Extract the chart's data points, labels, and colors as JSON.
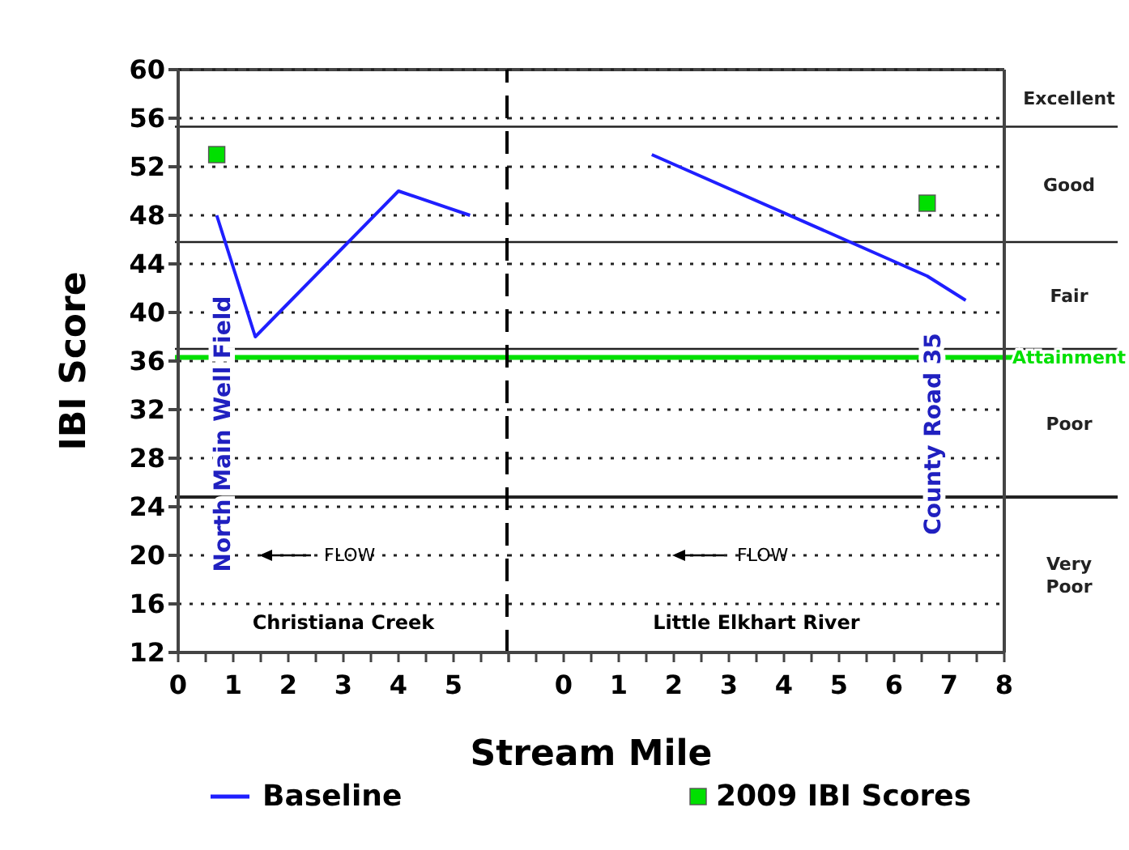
{
  "chart_data": [
    {
      "type": "line",
      "ylabel": "IBI Score",
      "xlabel": "Stream Mile",
      "xlim": [
        0,
        6
      ],
      "ylim": [
        12,
        60
      ],
      "xticks": [
        0,
        {
          "value": 0.5,
          "label": null
        },
        1,
        {
          "value": 1.5,
          "label": null
        },
        2,
        {
          "value": 2.5,
          "label": null
        },
        3,
        {
          "value": 3.5,
          "label": null
        },
        4,
        {
          "value": 4.5,
          "label": null
        },
        5,
        {
          "value": 5.5,
          "label": null
        },
        {
          "value": 6,
          "label": null
        }
      ],
      "yticks": [
        12,
        16,
        20,
        24,
        28,
        32,
        36,
        40,
        44,
        48,
        52,
        56,
        60
      ],
      "grid": "y",
      "legend": "bottom",
      "series": [
        {
          "name": "Baseline",
          "color": "#1f1fff",
          "x": [
            0.7,
            1.4,
            4,
            5.3
          ],
          "values": [
            48,
            38,
            50,
            48
          ],
          "marker": "none"
        },
        {
          "name": "2009 IBI Scores",
          "type": "scatter",
          "color": "#00e000",
          "x": [
            0.7
          ],
          "values": [
            53
          ],
          "marker": "square"
        }
      ],
      "ref_lines": [
        {
          "axis": "y",
          "value": 55.3,
          "color": "#222222"
        },
        {
          "axis": "y",
          "value": 45.8,
          "color": "#222222"
        },
        {
          "axis": "y",
          "value": 37,
          "color": "#222222"
        },
        {
          "axis": "y",
          "value": 36.3,
          "color": "#00e000"
        },
        {
          "axis": "y",
          "value": 24.8,
          "color": "#222222"
        },
        {
          "axis": "x",
          "value": 6,
          "color": "#000000",
          "line_style": "dashed"
        }
      ],
      "annotations": [
        "North Main Well Field",
        "FLOW",
        "Christiana Creek"
      ]
    },
    {
      "type": "line",
      "tick_labels": "x",
      "xlim": [
        -1,
        8
      ],
      "ylim": [
        12,
        60
      ],
      "xticks": [
        {
          "value": -1,
          "label": null
        },
        {
          "value": -0.5,
          "label": null
        },
        0,
        {
          "value": 0.5,
          "label": null
        },
        1,
        {
          "value": 1.5,
          "label": null
        },
        2,
        {
          "value": 2.5,
          "label": null
        },
        3,
        {
          "value": 3.5,
          "label": null
        },
        4,
        {
          "value": 4.5,
          "label": null
        },
        5,
        {
          "value": 5.5,
          "label": null
        },
        6,
        {
          "value": 6.5,
          "label": null
        },
        7,
        {
          "value": 7.5,
          "label": null
        },
        8
      ],
      "yticks": [
        12,
        16,
        20,
        24,
        28,
        32,
        36,
        40,
        44,
        48,
        52,
        56,
        60
      ],
      "grid": "y",
      "series": [
        {
          "color": "#1f1fff",
          "x": [
            1.6,
            6.6,
            7.3
          ],
          "values": [
            53,
            43,
            41
          ],
          "marker": "none"
        },
        {
          "type": "scatter",
          "color": "#00e000",
          "x": [
            6.6
          ],
          "values": [
            49
          ],
          "marker": "square"
        }
      ],
      "ref_lines": [
        {
          "axis": "y",
          "value": 55.3,
          "color": "#222222"
        },
        {
          "axis": "y",
          "value": 45.8,
          "color": "#222222"
        },
        {
          "axis": "y",
          "value": 37,
          "color": "#222222"
        },
        {
          "axis": "y",
          "value": 36.3,
          "color": "#00e000",
          "label": "Attainment"
        },
        {
          "axis": "y",
          "value": 24.8,
          "color": "#222222"
        }
      ],
      "annotations": [
        "County Road 35",
        "FLOW",
        "Little Elkhart River",
        "Excellent",
        "Good",
        "Fair",
        "Poor",
        "Very Poor"
      ]
    }
  ]
}
